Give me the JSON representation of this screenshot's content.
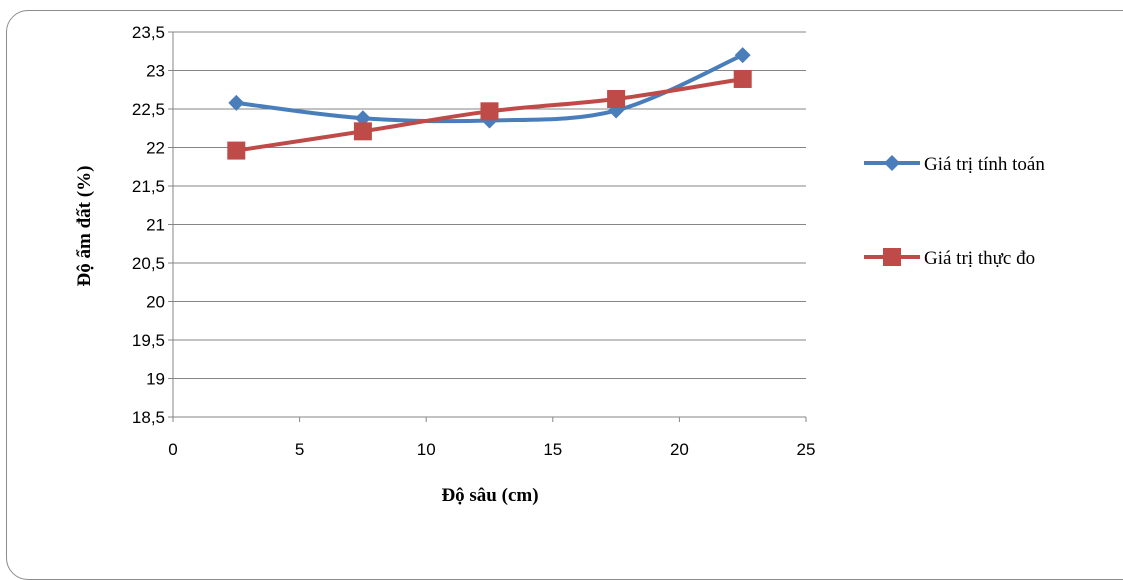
{
  "chart_data": {
    "type": "line",
    "xlabel": "Độ sâu (cm)",
    "ylabel": "Độ ẩm đất (%)",
    "xlim": [
      0,
      25
    ],
    "ylim": [
      18.5,
      23.5
    ],
    "x_ticks": [
      "0",
      "5",
      "10",
      "15",
      "20",
      "25"
    ],
    "y_ticks": [
      "18,5",
      "19",
      "19,5",
      "20",
      "20,5",
      "21",
      "21,5",
      "22",
      "22,5",
      "23",
      "23,5"
    ],
    "grid": true,
    "legend_position": "right",
    "series": [
      {
        "name": "Giá trị tính toán",
        "color": "#4a7ebb",
        "marker": "diamond",
        "smooth": true,
        "x": [
          2.5,
          7.5,
          12.5,
          17.5,
          22.5
        ],
        "y": [
          22.58,
          22.38,
          22.35,
          22.48,
          23.2
        ]
      },
      {
        "name": "Giá trị thực đo",
        "color": "#be4b48",
        "marker": "square",
        "smooth": true,
        "x": [
          2.5,
          7.5,
          12.5,
          17.5,
          22.5
        ],
        "y": [
          21.96,
          22.21,
          22.47,
          22.63,
          22.89
        ]
      }
    ]
  }
}
